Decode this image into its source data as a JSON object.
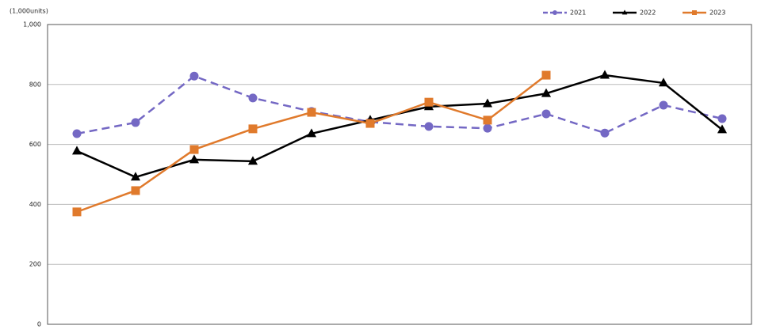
{
  "chart_data": {
    "type": "line",
    "y_label": "(1,000units)",
    "categories": [
      null,
      null,
      null,
      null,
      null,
      null,
      null,
      null,
      null,
      null,
      null,
      null
    ],
    "series": [
      {
        "name": "2021",
        "color": "#7468c4",
        "dash": true,
        "marker": "circle",
        "values": [
          636,
          673,
          828,
          755,
          710,
          675,
          660,
          654,
          702,
          638,
          731,
          686
        ]
      },
      {
        "name": "2022",
        "color": "#000000",
        "dash": false,
        "marker": "triangle",
        "values": [
          578,
          491,
          549,
          544,
          636,
          681,
          726,
          736,
          770,
          831,
          805,
          649
        ]
      },
      {
        "name": "2023",
        "color": "#e07a2c",
        "dash": false,
        "marker": "square",
        "values": [
          375,
          446,
          583,
          652,
          707,
          670,
          741,
          681,
          831,
          null,
          null,
          null
        ]
      }
    ],
    "ylim": [
      0,
      1000
    ],
    "yticks": [
      0,
      200,
      400,
      600,
      800,
      {
        "value": 1000,
        "label": "1,000"
      }
    ],
    "grid": true,
    "legend": "top-right"
  }
}
